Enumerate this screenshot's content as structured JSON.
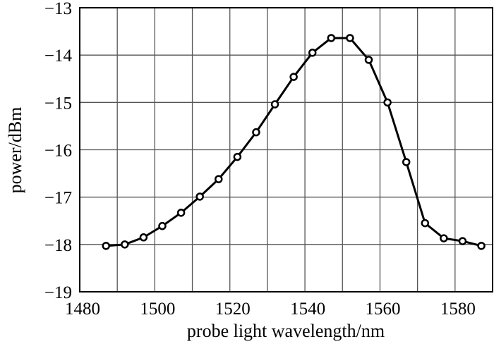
{
  "chart_data": {
    "type": "line",
    "title": "",
    "xlabel": "probe light wavelength/nm",
    "ylabel": "power/dBm",
    "xlim": [
      1480,
      1590
    ],
    "ylim": [
      -19,
      -13
    ],
    "grid": true,
    "x_grid_step": 10,
    "y_grid_step": 1,
    "xticks": [
      1480,
      1500,
      1520,
      1540,
      1560,
      1580
    ],
    "xtick_labels": [
      "1480",
      "1500",
      "1520",
      "1540",
      "1560",
      "1580"
    ],
    "yticks": [
      -13,
      -14,
      -15,
      -16,
      -17,
      -18,
      -19
    ],
    "ytick_labels": [
      "−13",
      "−14",
      "−15",
      "−16",
      "−17",
      "−18",
      "−19"
    ],
    "series": [
      {
        "name": "power",
        "marker": "circle",
        "color": "#000000",
        "x": [
          1487,
          1492,
          1497,
          1502,
          1507,
          1512,
          1517,
          1522,
          1527,
          1532,
          1537,
          1542,
          1547,
          1552,
          1557,
          1562,
          1567,
          1572,
          1577,
          1582,
          1587
        ],
        "y": [
          -18.03,
          -18.0,
          -17.85,
          -17.61,
          -17.33,
          -16.99,
          -16.62,
          -16.15,
          -15.63,
          -15.04,
          -14.46,
          -13.95,
          -13.64,
          -13.64,
          -14.1,
          -15.0,
          -16.26,
          -17.55,
          -17.87,
          -17.93,
          -18.03
        ]
      }
    ]
  }
}
